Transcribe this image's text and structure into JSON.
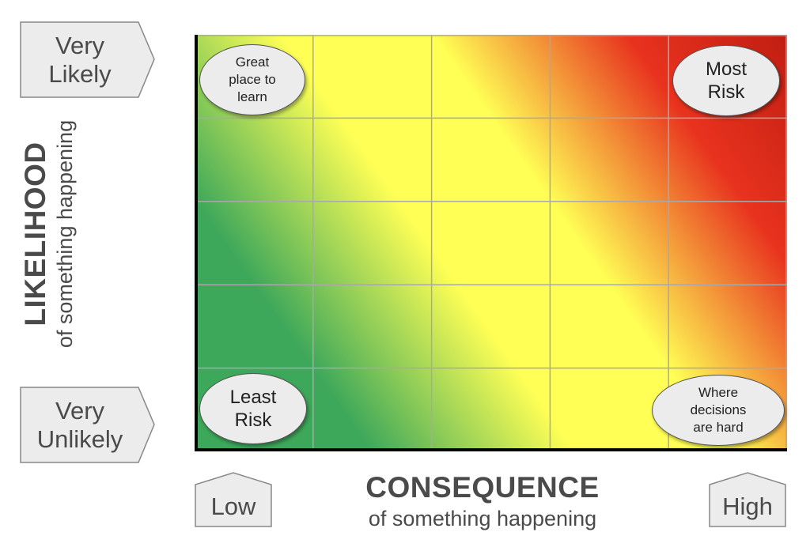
{
  "y_axis": {
    "title": "LIKELIHOOD",
    "subtitle": "of something happening",
    "top_label_lines": [
      "Very",
      "Likely"
    ],
    "bottom_label_lines": [
      "Very",
      "Unlikely"
    ]
  },
  "x_axis": {
    "title": "CONSEQUENCE",
    "subtitle": "of something happening",
    "left_label": "Low",
    "right_label": "High"
  },
  "grid": {
    "rows": 5,
    "columns": 5,
    "gradient_colors": {
      "low": "#3ea85a",
      "medium": "#ffff55",
      "high": "#e8321e",
      "highest": "#c01e12"
    },
    "grid_line_color": "#a8a8a8",
    "axis_color": "#000000"
  },
  "callouts": {
    "top_left": [
      "Great",
      "place to",
      "learn"
    ],
    "top_right": [
      "Most",
      "Risk"
    ],
    "bottom_left": [
      "Least",
      "Risk"
    ],
    "bottom_right": [
      "Where",
      "decisions",
      "are hard"
    ]
  }
}
